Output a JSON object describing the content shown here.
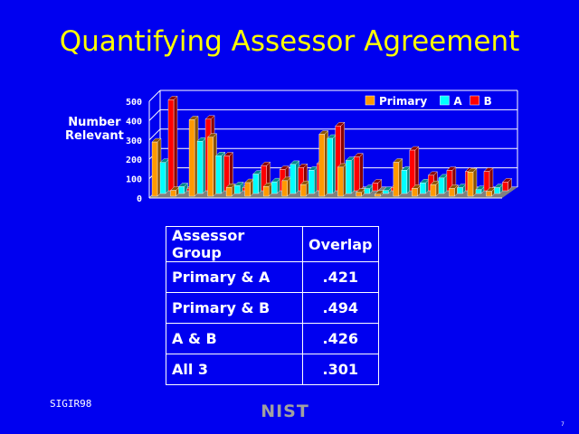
{
  "title": "Quantifying Assessor Agreement",
  "chart_data": {
    "type": "bar",
    "ylabel": "Number Relevant",
    "ylim": [
      0,
      500
    ],
    "yticks": [
      "0",
      "100",
      "200",
      "300",
      "400",
      "500"
    ],
    "grid": true,
    "legend_position": "top-right",
    "categories": [
      "",
      "",
      "",
      "",
      "",
      "",
      "",
      "",
      "",
      "",
      "",
      "",
      "",
      "",
      "",
      "",
      "",
      "",
      ""
    ],
    "series": [
      {
        "name": "Primary",
        "color": "#ff9900",
        "values": [
          280,
          30,
          395,
          305,
          45,
          70,
          50,
          80,
          60,
          320,
          150,
          20,
          10,
          175,
          40,
          60,
          40,
          125,
          25
        ]
      },
      {
        "name": "A",
        "color": "#00ffff",
        "values": [
          160,
          35,
          270,
          195,
          40,
          100,
          60,
          150,
          120,
          285,
          170,
          25,
          15,
          120,
          55,
          80,
          30,
          20,
          30
        ]
      },
      {
        "name": "B",
        "color": "#ff0000",
        "values": [
          470,
          10,
          370,
          180,
          15,
          130,
          110,
          120,
          140,
          335,
          175,
          40,
          15,
          210,
          80,
          105,
          100,
          100,
          45
        ]
      }
    ]
  },
  "table": {
    "headers": [
      "Assessor Group",
      "Overlap"
    ],
    "rows": [
      [
        "Primary & A",
        ".421"
      ],
      [
        "Primary & B",
        ".494"
      ],
      [
        "A & B",
        ".426"
      ],
      [
        "All 3",
        ".301"
      ]
    ]
  },
  "footer": "SIGIR98",
  "logo": "NIST",
  "page_number": "7"
}
